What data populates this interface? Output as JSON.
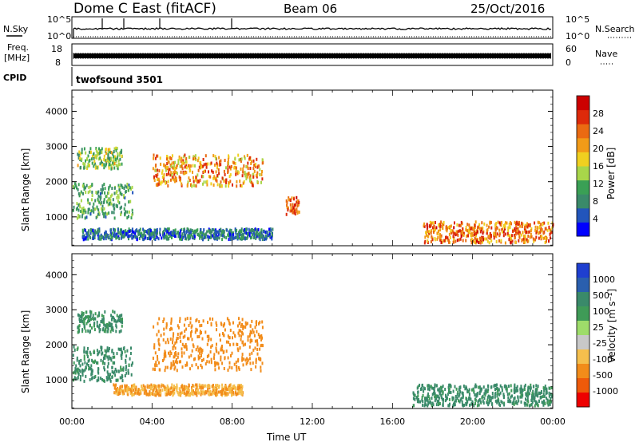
{
  "header": {
    "station": "Dome C East (fitACF)",
    "beam": "Beam 06",
    "date": "25/Oct/2016"
  },
  "status_panels": {
    "nsky_label": "N.Sky",
    "nsearch_label": "N.Search",
    "freq_label_1": "Freq.",
    "freq_label_2": "[MHz]",
    "nave_label": "Nave",
    "cpid_label": "CPID",
    "cpid_value": "twofsound 3501",
    "noise_ticks_left": [
      "10^5",
      "10^0"
    ],
    "noise_ticks_right": [
      "10^5",
      "10^0"
    ],
    "freq_ticks": [
      "18",
      "8"
    ],
    "nave_ticks": [
      "60",
      "0"
    ]
  },
  "colors": {
    "power_scale": [
      "#0000ff",
      "#2255bb",
      "#3a8a6a",
      "#3aa055",
      "#a8d64a",
      "#f0d020",
      "#f29b18",
      "#ea6a12",
      "#dd2a0a",
      "#cc0000"
    ],
    "velocity_scale": [
      "#ee0000",
      "#ee5a0a",
      "#f28c1a",
      "#f5bf4d",
      "#c8c8c8",
      "#9edc6a",
      "#3f9b57",
      "#3a8a6a",
      "#2a5fae",
      "#1f3fd0"
    ]
  },
  "chart_data": [
    {
      "type": "heatmap",
      "title": "Power",
      "xlabel": "",
      "ylabel": "Slant Range [km]",
      "xlim": [
        "00:00",
        "24:00"
      ],
      "ylim": [
        180,
        4600
      ],
      "yticks": [
        "1000",
        "2000",
        "3000",
        "4000"
      ],
      "colorbar": {
        "label": "Power [dB]",
        "ticks": [
          "4",
          "8",
          "12",
          "16",
          "20",
          "24",
          "28"
        ],
        "range": [
          0,
          32
        ]
      },
      "grid": false,
      "approx_echo_regions": [
        {
          "t_start": "00:15",
          "t_end": "02:30",
          "range_km": [
            2400,
            3000
          ],
          "power_db": [
            8,
            20
          ]
        },
        {
          "t_start": "00:00",
          "t_end": "03:00",
          "range_km": [
            1000,
            2000
          ],
          "power_db": [
            6,
            16
          ]
        },
        {
          "t_start": "00:30",
          "t_end": "10:00",
          "range_km": [
            400,
            700
          ],
          "power_db": [
            2,
            12
          ]
        },
        {
          "t_start": "04:00",
          "t_end": "09:30",
          "range_km": [
            1900,
            2800
          ],
          "power_db": [
            14,
            28
          ]
        },
        {
          "t_start": "10:40",
          "t_end": "11:20",
          "range_km": [
            1100,
            1600
          ],
          "power_db": [
            20,
            30
          ]
        },
        {
          "t_start": "17:30",
          "t_end": "24:00",
          "range_km": [
            300,
            900
          ],
          "power_db": [
            16,
            30
          ]
        }
      ]
    },
    {
      "type": "heatmap",
      "title": "Velocity",
      "xlabel": "Time UT",
      "ylabel": "Slant Range [km]",
      "xlim": [
        "00:00",
        "24:00"
      ],
      "ylim": [
        180,
        4600
      ],
      "yticks": [
        "1000",
        "2000",
        "3000",
        "4000"
      ],
      "xticks": [
        "00:00",
        "04:00",
        "08:00",
        "12:00",
        "16:00",
        "20:00",
        "00:00"
      ],
      "colorbar": {
        "label": "Velocity [m s⁻¹]",
        "ticks": [
          "1000",
          "500",
          "100",
          "25",
          "-25",
          "-100",
          "-500",
          "-1000"
        ]
      },
      "grid": false,
      "approx_echo_regions": [
        {
          "t_start": "00:15",
          "t_end": "02:30",
          "range_km": [
            2400,
            3000
          ],
          "velocity_ms": [
            25,
            300
          ]
        },
        {
          "t_start": "00:00",
          "t_end": "03:00",
          "range_km": [
            1000,
            2000
          ],
          "velocity_ms": [
            50,
            300
          ]
        },
        {
          "t_start": "02:00",
          "t_end": "08:30",
          "range_km": [
            600,
            900
          ],
          "velocity_ms": [
            -150,
            -50
          ]
        },
        {
          "t_start": "04:00",
          "t_end": "09:30",
          "range_km": [
            1300,
            2800
          ],
          "velocity_ms": [
            -500,
            -100
          ]
        },
        {
          "t_start": "17:00",
          "t_end": "24:00",
          "range_km": [
            300,
            900
          ],
          "velocity_ms": [
            25,
            500
          ]
        }
      ]
    }
  ]
}
